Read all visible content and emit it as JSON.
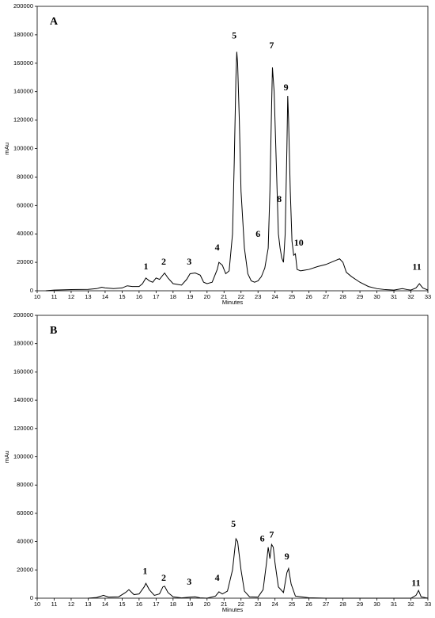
{
  "chart_data": [
    {
      "type": "line",
      "title": "A",
      "x_label": "Minutes",
      "y_label": "mAu",
      "color": "#000000",
      "xlim": [
        10,
        33
      ],
      "ylim": [
        0,
        200000
      ],
      "xticks": [
        10,
        11,
        12,
        13,
        14,
        15,
        16,
        17,
        18,
        19,
        20,
        21,
        22,
        23,
        24,
        25,
        26,
        27,
        28,
        29,
        30,
        31,
        32,
        33
      ],
      "yticks": [
        0,
        20000,
        40000,
        60000,
        80000,
        100000,
        120000,
        140000,
        160000,
        180000,
        200000
      ],
      "x": [
        10.5,
        11,
        12,
        13,
        13.5,
        13.8,
        14,
        14.5,
        15,
        15.3,
        15.6,
        16,
        16.2,
        16.4,
        16.6,
        16.8,
        17,
        17.2,
        17.5,
        17.7,
        18,
        18.5,
        18.8,
        19,
        19.3,
        19.6,
        19.8,
        20,
        20.3,
        20.6,
        20.7,
        20.9,
        21.1,
        21.3,
        21.5,
        21.6,
        21.7,
        21.75,
        21.8,
        21.9,
        22,
        22.2,
        22.4,
        22.6,
        22.8,
        23,
        23.2,
        23.4,
        23.6,
        23.7,
        23.8,
        23.85,
        23.95,
        24.1,
        24.2,
        24.3,
        24.4,
        24.5,
        24.6,
        24.7,
        24.75,
        24.8,
        24.9,
        25,
        25.1,
        25.2,
        25.3,
        25.5,
        26,
        26.5,
        27,
        27.5,
        27.8,
        28,
        28.2,
        28.5,
        29,
        29.5,
        30,
        30.5,
        31,
        31.5,
        31.8,
        32,
        32.3,
        32.5,
        32.7,
        33
      ],
      "values": [
        0,
        500,
        800,
        1000,
        1500,
        2500,
        2000,
        1500,
        2000,
        3500,
        3000,
        3000,
        5000,
        9000,
        7000,
        6000,
        9000,
        8000,
        12500,
        9000,
        5000,
        4000,
        8000,
        12000,
        12500,
        11000,
        6000,
        5000,
        6000,
        15000,
        20000,
        18000,
        12000,
        14000,
        40000,
        90000,
        150000,
        168000,
        160000,
        120000,
        70000,
        30000,
        12000,
        7000,
        6000,
        7000,
        10000,
        16000,
        30000,
        70000,
        130000,
        157000,
        140000,
        80000,
        40000,
        30000,
        23000,
        20000,
        40000,
        100000,
        137000,
        120000,
        70000,
        35000,
        25000,
        26000,
        15000,
        14000,
        15000,
        17000,
        18500,
        21000,
        22500,
        20000,
        13000,
        10000,
        6000,
        3000,
        1500,
        800,
        500,
        1500,
        800,
        500,
        2000,
        5000,
        2000,
        500
      ],
      "annotations": [
        {
          "text": "1",
          "x": 16.4,
          "y": 16700
        },
        {
          "text": "2",
          "x": 17.45,
          "y": 20000
        },
        {
          "text": "3",
          "x": 18.95,
          "y": 20000
        },
        {
          "text": "4",
          "x": 20.6,
          "y": 30000
        },
        {
          "text": "5",
          "x": 21.6,
          "y": 179000
        },
        {
          "text": "6",
          "x": 23.0,
          "y": 39500
        },
        {
          "text": "7",
          "x": 23.8,
          "y": 172000
        },
        {
          "text": "8",
          "x": 24.25,
          "y": 64000
        },
        {
          "text": "9",
          "x": 24.65,
          "y": 142600
        },
        {
          "text": "10",
          "x": 25.4,
          "y": 33400
        },
        {
          "text": "11",
          "x": 32.35,
          "y": 16200
        }
      ]
    },
    {
      "type": "line",
      "title": "B",
      "x_label": "Minutes",
      "y_label": "mAu",
      "color": "#000000",
      "xlim": [
        10,
        33
      ],
      "ylim": [
        0,
        200000
      ],
      "xticks": [
        10,
        11,
        12,
        13,
        14,
        15,
        16,
        17,
        18,
        19,
        20,
        21,
        22,
        23,
        24,
        25,
        26,
        27,
        28,
        29,
        30,
        31,
        32,
        33
      ],
      "yticks": [
        0,
        20000,
        40000,
        60000,
        80000,
        100000,
        120000,
        140000,
        160000,
        180000,
        200000
      ],
      "x": [
        13,
        13.5,
        13.9,
        14.2,
        14.8,
        15.2,
        15.4,
        15.7,
        16,
        16.3,
        16.4,
        16.6,
        16.9,
        17.2,
        17.4,
        17.5,
        17.7,
        18,
        18.5,
        19,
        19.3,
        19.6,
        20,
        20.5,
        20.7,
        20.9,
        21.2,
        21.5,
        21.7,
        21.8,
        22,
        22.2,
        22.5,
        23,
        23.3,
        23.5,
        23.6,
        23.7,
        23.8,
        23.9,
        24,
        24.2,
        24.5,
        24.7,
        24.8,
        24.95,
        25.2,
        26,
        27,
        32,
        32.3,
        32.45,
        32.6,
        33
      ],
      "values": [
        0,
        500,
        2000,
        800,
        1000,
        4000,
        6000,
        2500,
        3000,
        8000,
        10500,
        6000,
        2000,
        3000,
        8000,
        8500,
        4000,
        1000,
        200,
        800,
        1000,
        200,
        0,
        1500,
        4500,
        3000,
        5000,
        20000,
        42000,
        40000,
        20000,
        5000,
        1000,
        800,
        6000,
        25000,
        36000,
        28000,
        38000,
        36000,
        25000,
        8000,
        4000,
        18000,
        21000,
        10000,
        1500,
        300,
        0,
        0,
        2000,
        5500,
        1000,
        0
      ],
      "annotations": [
        {
          "text": "1",
          "x": 16.35,
          "y": 18500
        },
        {
          "text": "2",
          "x": 17.45,
          "y": 14000
        },
        {
          "text": "3",
          "x": 18.95,
          "y": 11200
        },
        {
          "text": "4",
          "x": 20.6,
          "y": 14000
        },
        {
          "text": "5",
          "x": 21.55,
          "y": 52100
        },
        {
          "text": "6",
          "x": 23.25,
          "y": 41500
        },
        {
          "text": "7",
          "x": 23.8,
          "y": 44300
        },
        {
          "text": "9",
          "x": 24.7,
          "y": 29100
        },
        {
          "text": "11",
          "x": 32.3,
          "y": 10100
        }
      ]
    }
  ]
}
